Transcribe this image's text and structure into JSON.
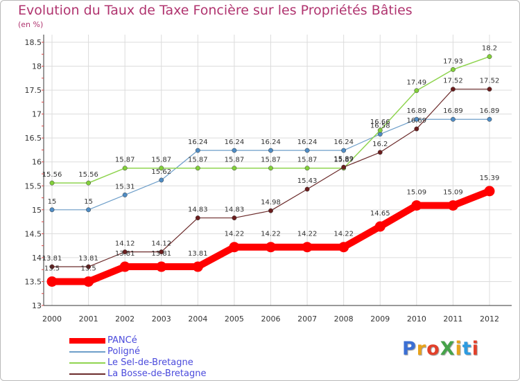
{
  "header": {
    "title": "Evolution du Taux de Taxe Foncière sur les Propriétés Bâties",
    "subtitle": "(en %)"
  },
  "logo": {
    "text": "ProXiti",
    "colors": [
      "#3b6fd4",
      "#e8a21b",
      "#e2402a",
      "#46a34a",
      "#e8a21b",
      "#2d9be0",
      "#e2402a"
    ]
  },
  "chart_data": {
    "type": "line",
    "title": "Evolution du Taux de Taxe Foncière sur les Propriétés Bâties",
    "ylabel": "(en %)",
    "xlabel": "",
    "x": [
      "2000",
      "2001",
      "2002",
      "2003",
      "2004",
      "2005",
      "2006",
      "2007",
      "2008",
      "2009",
      "2010",
      "2011",
      "2012"
    ],
    "yticks": [
      "13",
      "13.5",
      "14",
      "14.5",
      "15",
      "15.5",
      "16",
      "16.5",
      "17",
      "17.5",
      "18",
      "18.5"
    ],
    "ylim": [
      13,
      18.5
    ],
    "grid": true,
    "legend_position": "bottom-left",
    "series": [
      {
        "name": "PANCé",
        "color": "#ff0000",
        "values": [
          13.5,
          13.5,
          13.81,
          13.81,
          13.81,
          14.22,
          14.22,
          14.22,
          14.22,
          14.65,
          15.09,
          15.09,
          15.39
        ],
        "labels": [
          "13.5",
          "13.5",
          "13.81",
          "13.81",
          "13.81",
          "14.22",
          "14.22",
          "14.22",
          "14.22",
          "14.65",
          "15.09",
          "15.09",
          "15.39"
        ]
      },
      {
        "name": "Poligné",
        "color": "#6d9ec9",
        "values": [
          15,
          15,
          15.31,
          15.62,
          16.24,
          16.24,
          16.24,
          16.24,
          16.24,
          16.58,
          16.89,
          16.89,
          16.89
        ],
        "labels": [
          "15",
          "15",
          "15.31",
          "15.62",
          "16.24",
          "16.24",
          "16.24",
          "16.24",
          "16.24",
          "16.58",
          "16.89",
          "16.89",
          "16.89"
        ]
      },
      {
        "name": "Le Sel-de-Bretagne",
        "color": "#8fd44f",
        "values": [
          15.56,
          15.56,
          15.87,
          15.87,
          15.87,
          15.87,
          15.87,
          15.87,
          15.87,
          16.66,
          17.49,
          17.93,
          18.2
        ],
        "labels": [
          "15.56",
          "15.56",
          "15.87",
          "15.87",
          "15.87",
          "15.87",
          "15.87",
          "15.87",
          "15.87",
          "16.66",
          "17.49",
          "17.93",
          "18.2"
        ]
      },
      {
        "name": "La Bosse-de-Bretagne",
        "color": "#6b2a2a",
        "values": [
          13.81,
          13.81,
          14.12,
          14.12,
          14.83,
          14.83,
          14.98,
          15.43,
          15.89,
          16.2,
          16.69,
          17.52,
          17.52
        ],
        "labels": [
          "13.81",
          "13.81",
          "14.12",
          "14.12",
          "14.83",
          "14.83",
          "14.98",
          "15.43",
          "15.89",
          "16.2",
          "16.69",
          "17.52",
          "17.52"
        ]
      }
    ]
  }
}
